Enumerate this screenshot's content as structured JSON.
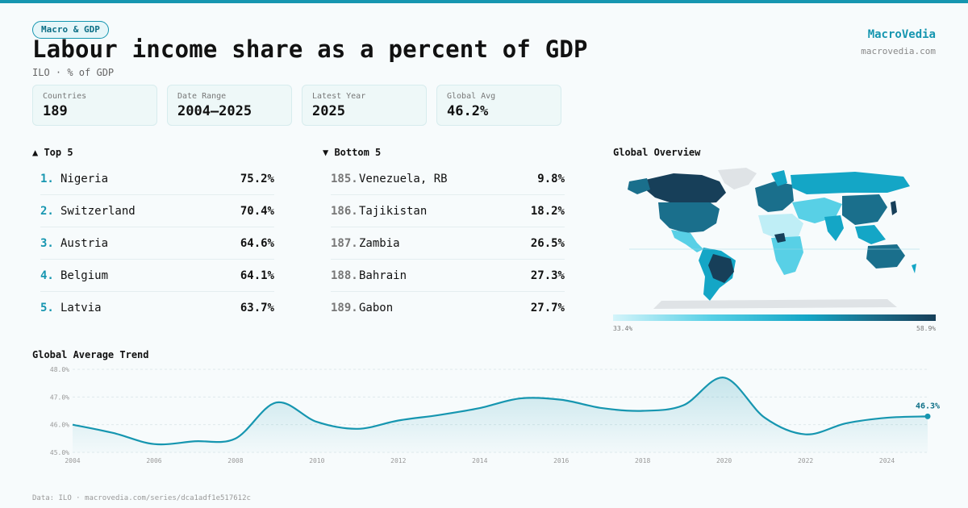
{
  "header": {
    "tag": "Macro & GDP",
    "title": "Labour income share as a percent of GDP",
    "subtitle": "ILO · % of GDP"
  },
  "brand": {
    "name": "MacroVedia",
    "url": "macrovedia.com"
  },
  "stats": [
    {
      "label": "Countries",
      "value": "189"
    },
    {
      "label": "Date Range",
      "value": "2004–2025"
    },
    {
      "label": "Latest Year",
      "value": "2025"
    },
    {
      "label": "Global Avg",
      "value": "46.2%"
    }
  ],
  "top5": {
    "heading": "▲ Top 5",
    "items": [
      {
        "rank": "1.",
        "country": "Nigeria",
        "value": "75.2%"
      },
      {
        "rank": "2.",
        "country": "Switzerland",
        "value": "70.4%"
      },
      {
        "rank": "3.",
        "country": "Austria",
        "value": "64.6%"
      },
      {
        "rank": "4.",
        "country": "Belgium",
        "value": "64.1%"
      },
      {
        "rank": "5.",
        "country": "Latvia",
        "value": "63.7%"
      }
    ]
  },
  "bottom5": {
    "heading": "▼ Bottom 5",
    "items": [
      {
        "rank": "185.",
        "country": "Venezuela, RB",
        "value": "9.8%"
      },
      {
        "rank": "186.",
        "country": "Tajikistan",
        "value": "18.2%"
      },
      {
        "rank": "187.",
        "country": "Zambia",
        "value": "26.5%"
      },
      {
        "rank": "188.",
        "country": "Bahrain",
        "value": "27.3%"
      },
      {
        "rank": "189.",
        "country": "Gabon",
        "value": "27.7%"
      }
    ]
  },
  "map": {
    "heading": "Global Overview",
    "legend_min": "33.4%",
    "legend_max": "58.9%",
    "colors": {
      "dark": "#173f59",
      "mid": "#1a6f8c",
      "teal": "#14a6c6",
      "light": "#58d0e6",
      "pale": "#bfeef6",
      "nodata": "#dfe3e6"
    }
  },
  "footer": "Data: ILO · macrovedia.com/series/dca1adf1e517612c",
  "chart_data": {
    "type": "line",
    "title": "Global Average Trend",
    "xlabel": "",
    "ylabel": "",
    "x": [
      2004,
      2005,
      2006,
      2007,
      2008,
      2009,
      2010,
      2011,
      2012,
      2013,
      2014,
      2015,
      2016,
      2017,
      2018,
      2019,
      2020,
      2021,
      2022,
      2023,
      2024,
      2025
    ],
    "values": [
      46.0,
      45.7,
      45.3,
      45.4,
      45.5,
      46.8,
      46.1,
      45.85,
      46.15,
      46.35,
      46.6,
      46.95,
      46.9,
      46.6,
      46.5,
      46.7,
      47.7,
      46.25,
      45.65,
      46.05,
      46.25,
      46.3
    ],
    "ylim": [
      45.0,
      48.0
    ],
    "yticks": [
      "48.0%",
      "47.0%",
      "46.0%",
      "45.0%"
    ],
    "ytick_values": [
      48,
      47,
      46,
      45
    ],
    "xticks": [
      2004,
      2006,
      2008,
      2010,
      2012,
      2014,
      2016,
      2018,
      2020,
      2022,
      2024
    ],
    "last_label": "46.3%",
    "grid": true,
    "color": "#1696b0"
  }
}
